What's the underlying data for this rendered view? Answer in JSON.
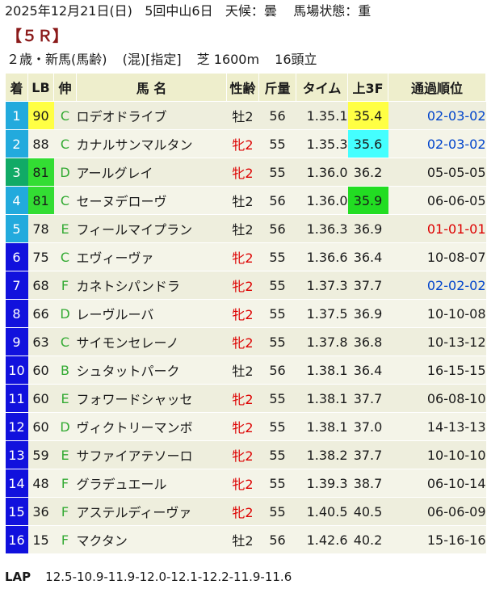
{
  "header": {
    "date": "2025年12月21日(日)",
    "meeting": "5回中山6日",
    "weather": "天候：曇",
    "track": "馬場状態：重"
  },
  "race_label": "【５Ｒ】",
  "conditions": {
    "class": "２歳・新馬(馬齢)",
    "restriction": "(混)[指定]",
    "distance": "芝 1600m",
    "field": "16頭立"
  },
  "columns": {
    "chaku": "着",
    "lb": "LB",
    "nobi": "伸",
    "name": "馬 名",
    "sex_age": "性齢",
    "kin": "斤量",
    "time": "タイム",
    "agari": "上3F",
    "pass": "通過順位"
  },
  "colors": {
    "frame": [
      "#22aadd",
      "#22aadd",
      "#11aa66",
      "#22aadd",
      "#22aadd",
      "#1111dd",
      "#1111dd",
      "#1111dd",
      "#1111dd",
      "#1111dd",
      "#1111dd",
      "#1111dd",
      "#1111dd",
      "#1111dd",
      "#1111dd",
      "#1111dd"
    ],
    "header_bg": "#eeeecc",
    "row_bg": "#eeeedd",
    "nobi_green": "#33aa33",
    "hl_yellow": "#ffff44",
    "hl_cyan": "#44ffff",
    "hl_green": "#22dd22",
    "text_red": "#dd0000",
    "text_blue": "#0044cc"
  },
  "rows": [
    {
      "chaku": "1",
      "lb": "90",
      "lb_hl": "yellow",
      "nobi": "C",
      "name": "ロデオドライブ",
      "sex_age": "牡2",
      "sex_red": false,
      "kin": "56",
      "time": "1.35.1",
      "agari": "35.4",
      "agari_hl": "yellow",
      "pass": "02-03-02",
      "pass_color": "blue"
    },
    {
      "chaku": "2",
      "lb": "88",
      "lb_hl": "",
      "nobi": "C",
      "name": "カナルサンマルタン",
      "sex_age": "牝2",
      "sex_red": true,
      "kin": "55",
      "time": "1.35.3",
      "agari": "35.6",
      "agari_hl": "cyan",
      "pass": "02-03-02",
      "pass_color": "blue"
    },
    {
      "chaku": "3",
      "lb": "81",
      "lb_hl": "green",
      "nobi": "D",
      "name": "アールグレイ",
      "sex_age": "牝2",
      "sex_red": true,
      "kin": "55",
      "time": "1.36.0",
      "agari": "36.2",
      "agari_hl": "",
      "pass": "05-05-05",
      "pass_color": ""
    },
    {
      "chaku": "4",
      "lb": "81",
      "lb_hl": "green",
      "nobi": "C",
      "name": "セーヌデローヴ",
      "sex_age": "牡2",
      "sex_red": false,
      "kin": "56",
      "time": "1.36.0",
      "agari": "35.9",
      "agari_hl": "green",
      "pass": "06-06-05",
      "pass_color": ""
    },
    {
      "chaku": "5",
      "lb": "78",
      "lb_hl": "",
      "nobi": "E",
      "name": "フィールマイプラン",
      "sex_age": "牡2",
      "sex_red": false,
      "kin": "56",
      "time": "1.36.3",
      "agari": "36.9",
      "agari_hl": "",
      "pass": "01-01-01",
      "pass_color": "red"
    },
    {
      "chaku": "6",
      "lb": "75",
      "lb_hl": "",
      "nobi": "C",
      "name": "エヴィーヴァ",
      "sex_age": "牝2",
      "sex_red": true,
      "kin": "55",
      "time": "1.36.6",
      "agari": "36.4",
      "agari_hl": "",
      "pass": "10-08-07",
      "pass_color": ""
    },
    {
      "chaku": "7",
      "lb": "68",
      "lb_hl": "",
      "nobi": "F",
      "name": "カネトシパンドラ",
      "sex_age": "牝2",
      "sex_red": true,
      "kin": "55",
      "time": "1.37.3",
      "agari": "37.7",
      "agari_hl": "",
      "pass": "02-02-02",
      "pass_color": "blue"
    },
    {
      "chaku": "8",
      "lb": "66",
      "lb_hl": "",
      "nobi": "D",
      "name": "レーヴルーバ",
      "sex_age": "牝2",
      "sex_red": true,
      "kin": "55",
      "time": "1.37.5",
      "agari": "36.9",
      "agari_hl": "",
      "pass": "10-10-08",
      "pass_color": ""
    },
    {
      "chaku": "9",
      "lb": "63",
      "lb_hl": "",
      "nobi": "C",
      "name": "サイモンセレーノ",
      "sex_age": "牝2",
      "sex_red": true,
      "kin": "55",
      "time": "1.37.8",
      "agari": "36.8",
      "agari_hl": "",
      "pass": "10-13-12",
      "pass_color": ""
    },
    {
      "chaku": "10",
      "lb": "60",
      "lb_hl": "",
      "nobi": "B",
      "name": "シュタットパーク",
      "sex_age": "牡2",
      "sex_red": false,
      "kin": "56",
      "time": "1.38.1",
      "agari": "36.4",
      "agari_hl": "",
      "pass": "16-15-15",
      "pass_color": ""
    },
    {
      "chaku": "11",
      "lb": "60",
      "lb_hl": "",
      "nobi": "E",
      "name": "フォワードシャッセ",
      "sex_age": "牝2",
      "sex_red": true,
      "kin": "55",
      "time": "1.38.1",
      "agari": "37.7",
      "agari_hl": "",
      "pass": "06-08-10",
      "pass_color": ""
    },
    {
      "chaku": "12",
      "lb": "60",
      "lb_hl": "",
      "nobi": "D",
      "name": "ヴィクトリーマンボ",
      "sex_age": "牝2",
      "sex_red": true,
      "kin": "55",
      "time": "1.38.1",
      "agari": "37.0",
      "agari_hl": "",
      "pass": "14-13-13",
      "pass_color": ""
    },
    {
      "chaku": "13",
      "lb": "59",
      "lb_hl": "",
      "nobi": "E",
      "name": "サファイアテソーロ",
      "sex_age": "牝2",
      "sex_red": true,
      "kin": "55",
      "time": "1.38.2",
      "agari": "37.7",
      "agari_hl": "",
      "pass": "10-10-10",
      "pass_color": ""
    },
    {
      "chaku": "14",
      "lb": "48",
      "lb_hl": "",
      "nobi": "F",
      "name": "グラデュエール",
      "sex_age": "牝2",
      "sex_red": true,
      "kin": "55",
      "time": "1.39.3",
      "agari": "38.7",
      "agari_hl": "",
      "pass": "06-10-14",
      "pass_color": ""
    },
    {
      "chaku": "15",
      "lb": "36",
      "lb_hl": "",
      "nobi": "F",
      "name": "アステルディーヴァ",
      "sex_age": "牝2",
      "sex_red": true,
      "kin": "55",
      "time": "1.40.5",
      "agari": "40.5",
      "agari_hl": "",
      "pass": "06-06-09",
      "pass_color": ""
    },
    {
      "chaku": "16",
      "lb": "15",
      "lb_hl": "",
      "nobi": "F",
      "name": "マクタン",
      "sex_age": "牡2",
      "sex_red": false,
      "kin": "56",
      "time": "1.42.6",
      "agari": "40.2",
      "agari_hl": "",
      "pass": "15-16-16",
      "pass_color": ""
    }
  ],
  "lap": {
    "label": "LAP",
    "values": "12.5-10.9-11.9-12.0-12.1-12.2-11.9-11.6"
  }
}
